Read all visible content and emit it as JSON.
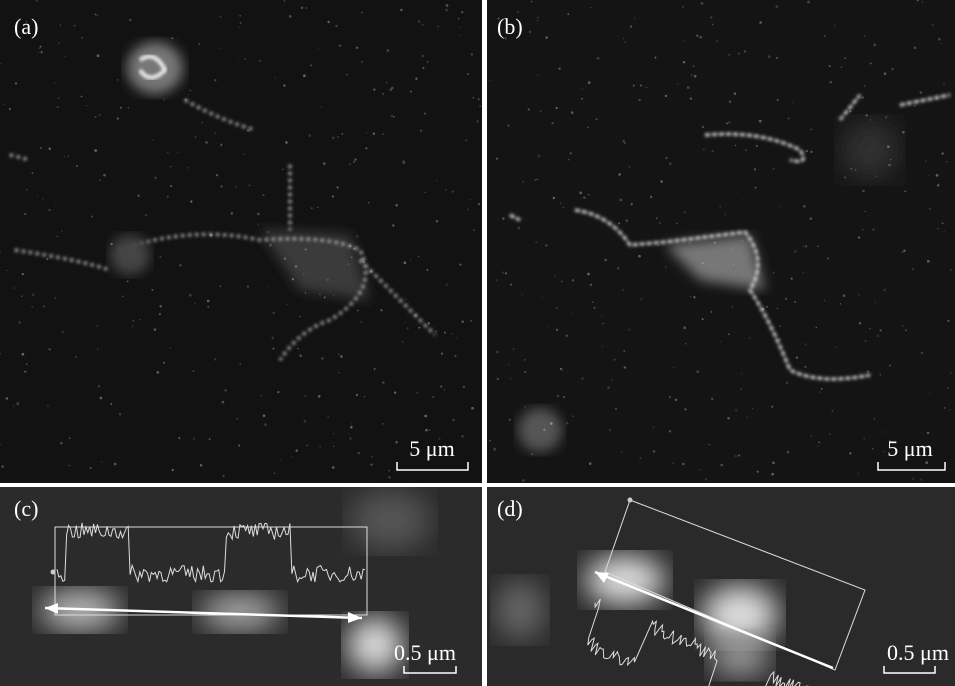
{
  "panels": [
    {
      "label": "(a)",
      "scale_bar": "5 μm"
    },
    {
      "label": "(b)",
      "scale_bar": "5 μm"
    },
    {
      "label": "(c)",
      "scale_bar": "0.5 μm"
    },
    {
      "label": "(d)",
      "scale_bar": "0.5 μm"
    }
  ]
}
